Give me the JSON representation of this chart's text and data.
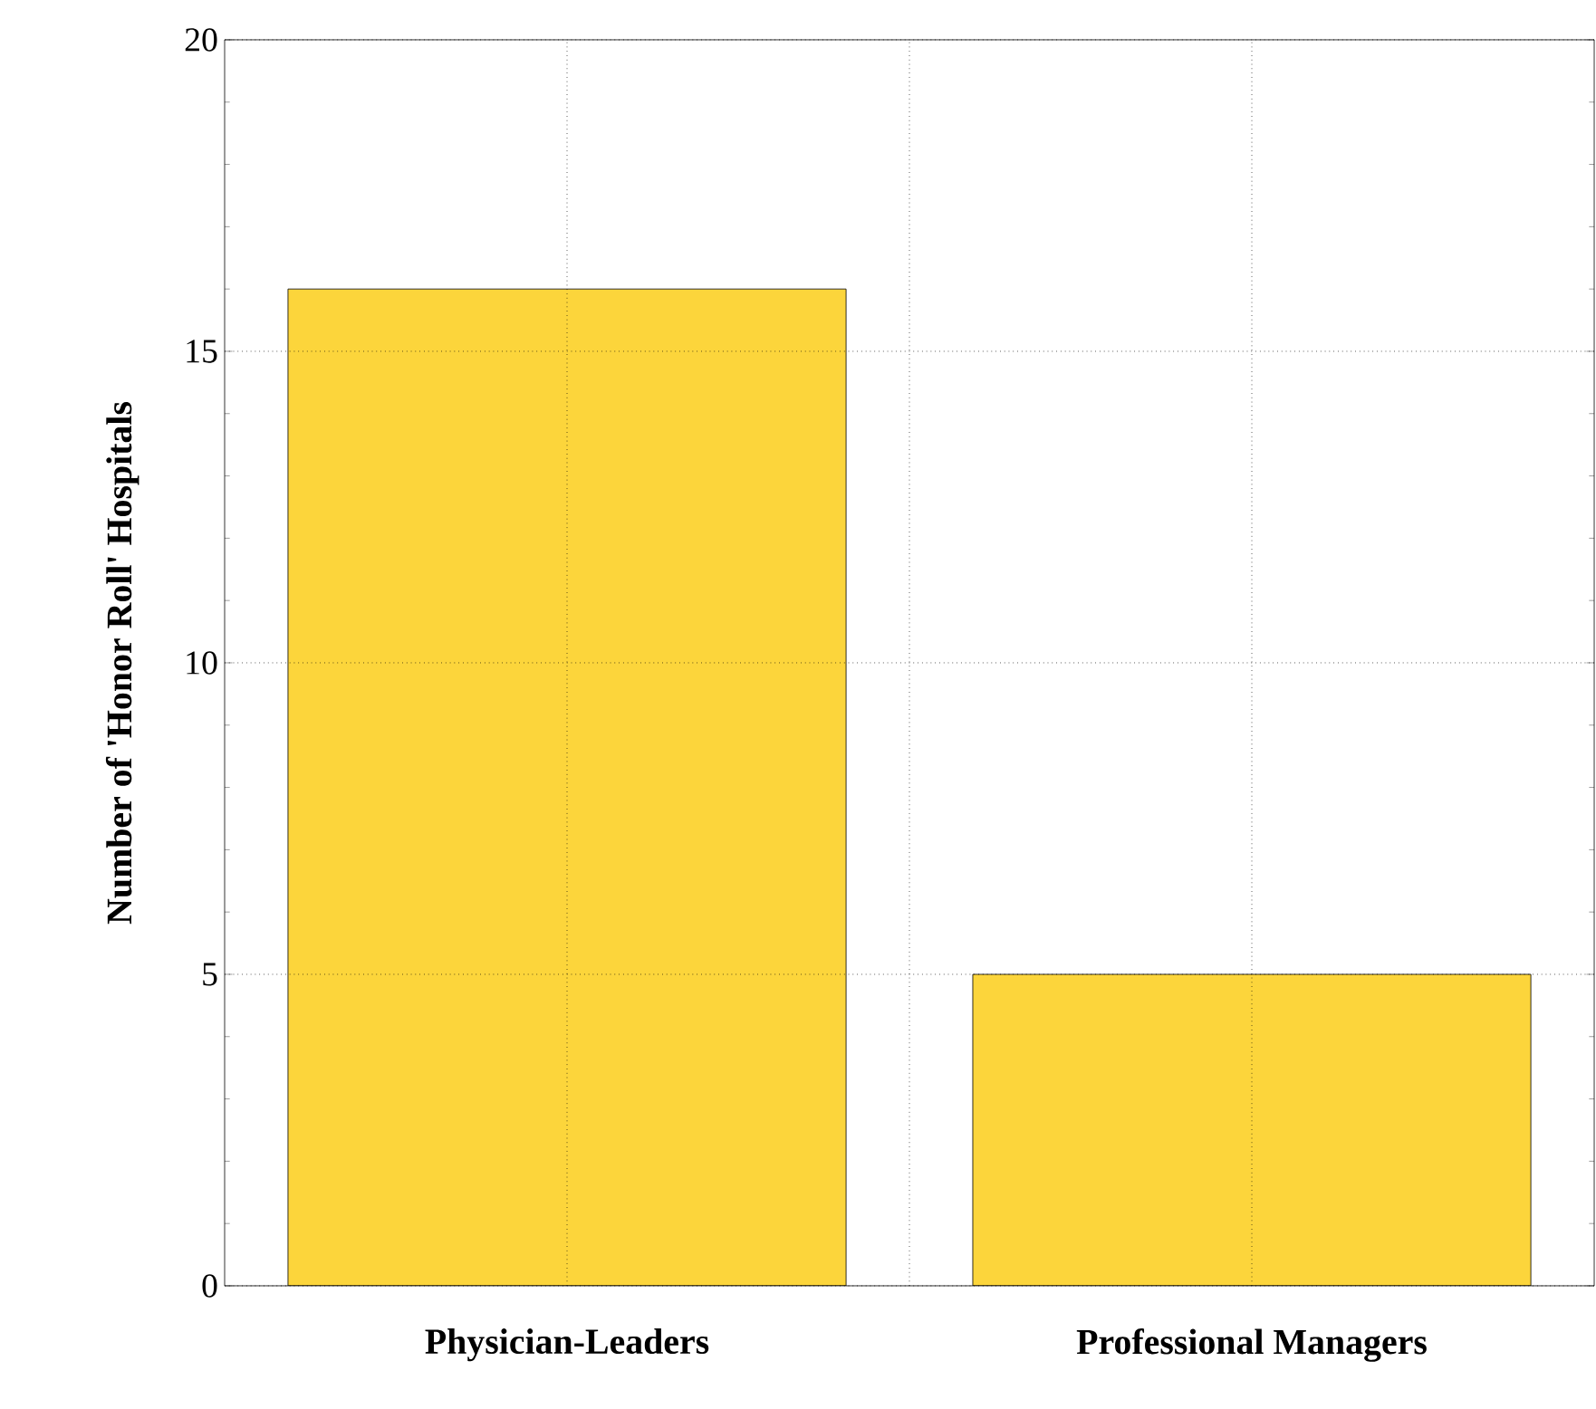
{
  "chart_data": {
    "type": "bar",
    "ylabel": "Number of 'Honor Roll' Hospitals",
    "categories": [
      "Physician-Leaders",
      "Professional Managers"
    ],
    "values": [
      16,
      5
    ],
    "color": "#fcd53b",
    "ylim": [
      0,
      20
    ],
    "yticks": [
      0,
      5,
      10,
      15,
      20
    ],
    "grid": true
  }
}
